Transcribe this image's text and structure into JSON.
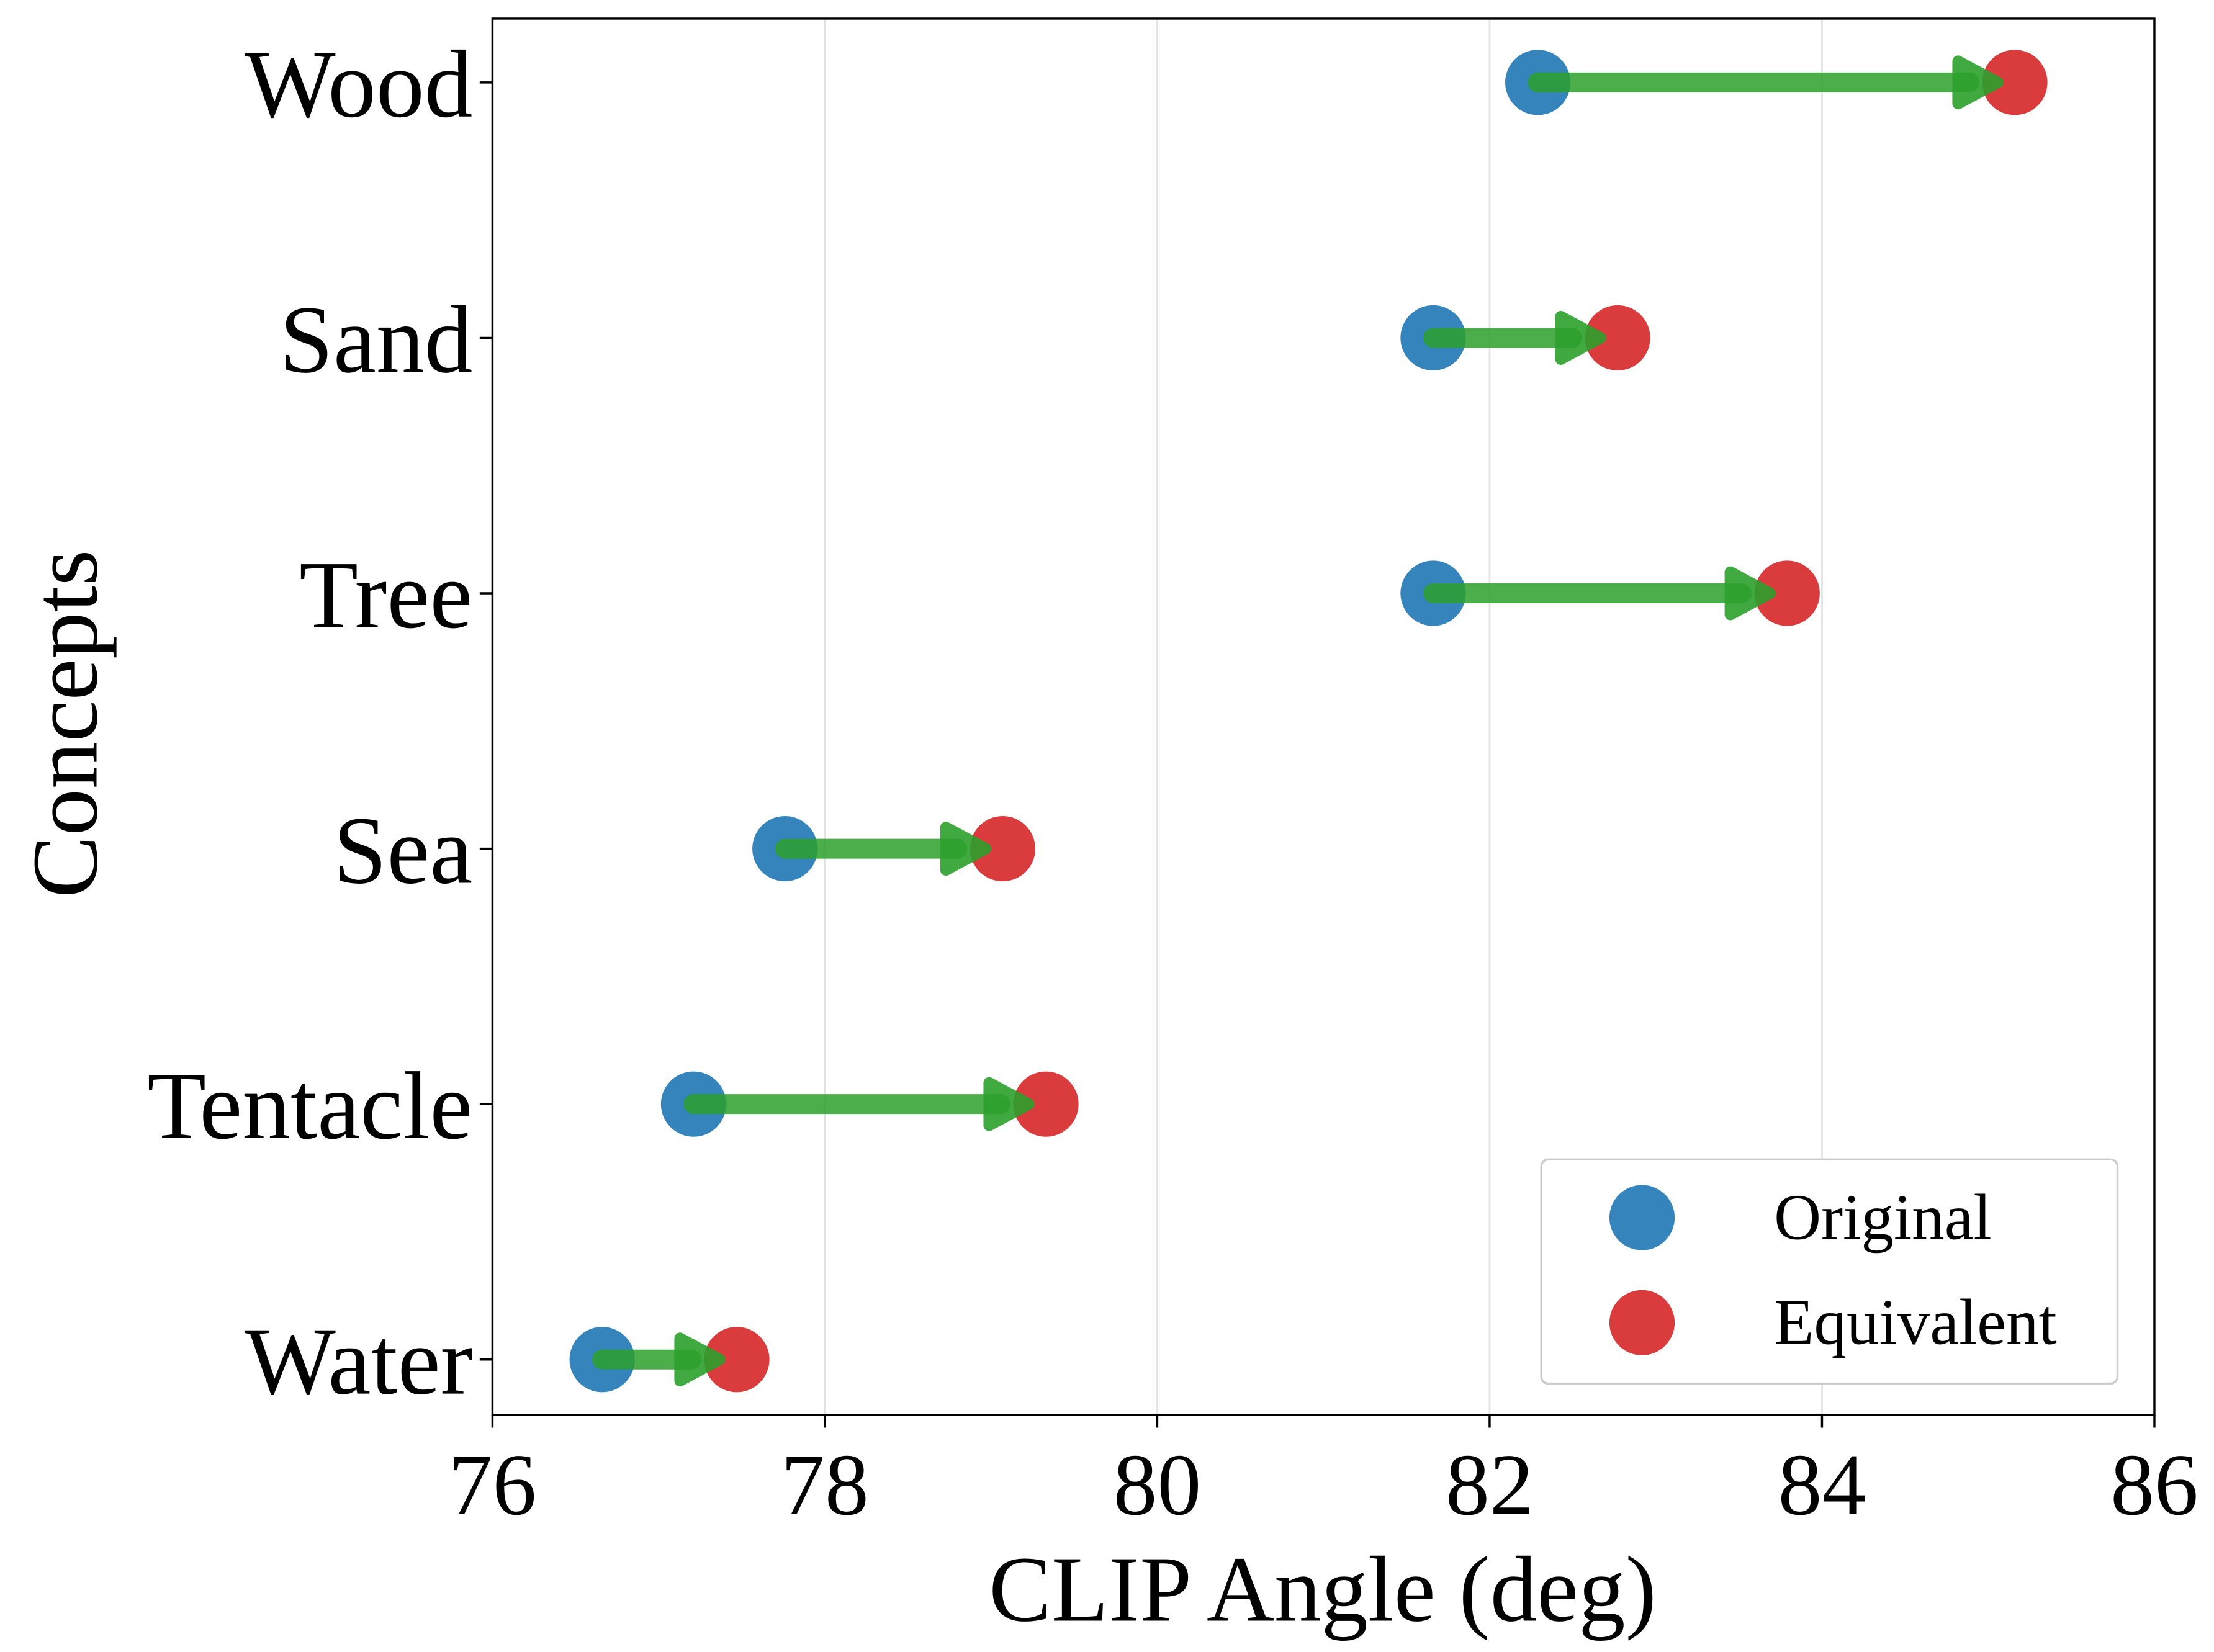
{
  "chart_data": {
    "type": "dumbbell",
    "xlabel": "CLIP Angle (deg)",
    "ylabel": "Concepts",
    "xlim": [
      76,
      86
    ],
    "xticks": [
      "76",
      "78",
      "80",
      "82",
      "84",
      "86"
    ],
    "categories": [
      "Wood",
      "Sand",
      "Tree",
      "Sea",
      "Tentacle",
      "Water"
    ],
    "series": [
      {
        "name": "Original",
        "color": "#1f77b4",
        "values": [
          82.29,
          81.66,
          81.66,
          77.76,
          77.21,
          76.66
        ]
      },
      {
        "name": "Equivalent",
        "color": "#d62728",
        "values": [
          85.16,
          82.77,
          83.79,
          79.07,
          79.33,
          77.47
        ]
      }
    ],
    "arrow_color": "#2ca02c",
    "grid": "vertical",
    "legend": "bottom-right"
  }
}
